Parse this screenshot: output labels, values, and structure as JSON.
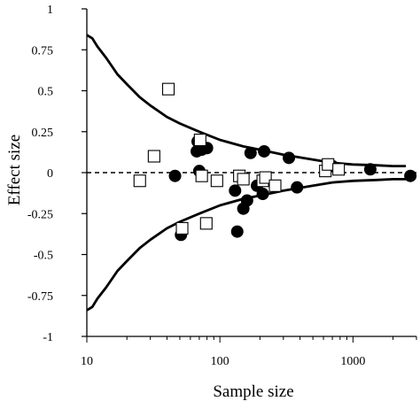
{
  "chart_data": {
    "type": "scatter",
    "title": "",
    "xlabel": "Sample size",
    "ylabel": "Effect size",
    "x_scale": "log",
    "xlim": [
      10,
      3000
    ],
    "ylim": [
      -1,
      1
    ],
    "x_ticks": [
      10,
      100,
      1000
    ],
    "x_tick_labels": [
      "10",
      "100",
      "1000"
    ],
    "y_ticks": [
      1,
      0.75,
      0.5,
      0.25,
      0,
      -0.25,
      -0.5,
      -0.75,
      -1
    ],
    "y_tick_labels": [
      "1",
      "0.75",
      "0.5",
      "0.25",
      "0",
      "-0.25",
      "-0.5",
      "-0.75",
      "-1"
    ],
    "grid": false,
    "legend": "none",
    "reference_line": {
      "y": 0,
      "style": "dashed"
    },
    "funnel_bounds": {
      "x": [
        10,
        11,
        12,
        14,
        17,
        20,
        25,
        30,
        40,
        50,
        70,
        100,
        150,
        200,
        300,
        500,
        700,
        1000,
        1500,
        2000,
        2500
      ],
      "upper": [
        0.84,
        0.82,
        0.77,
        0.7,
        0.6,
        0.54,
        0.46,
        0.41,
        0.34,
        0.3,
        0.25,
        0.2,
        0.16,
        0.14,
        0.11,
        0.08,
        0.06,
        0.05,
        0.045,
        0.04,
        0.04
      ],
      "lower": [
        -0.84,
        -0.82,
        -0.77,
        -0.7,
        -0.6,
        -0.54,
        -0.46,
        -0.41,
        -0.34,
        -0.3,
        -0.25,
        -0.2,
        -0.16,
        -0.14,
        -0.11,
        -0.08,
        -0.06,
        -0.05,
        -0.045,
        -0.04,
        -0.04
      ]
    },
    "series": [
      {
        "marker": "filled-circle",
        "color": "#000000",
        "points": [
          [
            46,
            -0.02
          ],
          [
            51,
            -0.38
          ],
          [
            68,
            0.19
          ],
          [
            67,
            0.13
          ],
          [
            70,
            0.01
          ],
          [
            73,
            0.14
          ],
          [
            80,
            0.15
          ],
          [
            130,
            -0.11
          ],
          [
            135,
            -0.36
          ],
          [
            150,
            -0.22
          ],
          [
            160,
            -0.17
          ],
          [
            170,
            0.12
          ],
          [
            190,
            -0.08
          ],
          [
            215,
            0.13
          ],
          [
            210,
            -0.13
          ],
          [
            330,
            0.09
          ],
          [
            380,
            -0.09
          ],
          [
            700,
            0.04
          ],
          [
            1350,
            0.02
          ],
          [
            2700,
            -0.02
          ]
        ]
      },
      {
        "marker": "open-square",
        "color": "#000000",
        "points": [
          [
            25,
            -0.05
          ],
          [
            32,
            0.1
          ],
          [
            41,
            0.51
          ],
          [
            52,
            -0.34
          ],
          [
            71,
            0.2
          ],
          [
            73,
            -0.02
          ],
          [
            79,
            -0.31
          ],
          [
            95,
            -0.05
          ],
          [
            140,
            -0.02
          ],
          [
            150,
            -0.04
          ],
          [
            210,
            -0.05
          ],
          [
            220,
            -0.03
          ],
          [
            260,
            -0.08
          ],
          [
            620,
            0.01
          ],
          [
            650,
            0.05
          ],
          [
            780,
            0.02
          ]
        ]
      }
    ]
  }
}
